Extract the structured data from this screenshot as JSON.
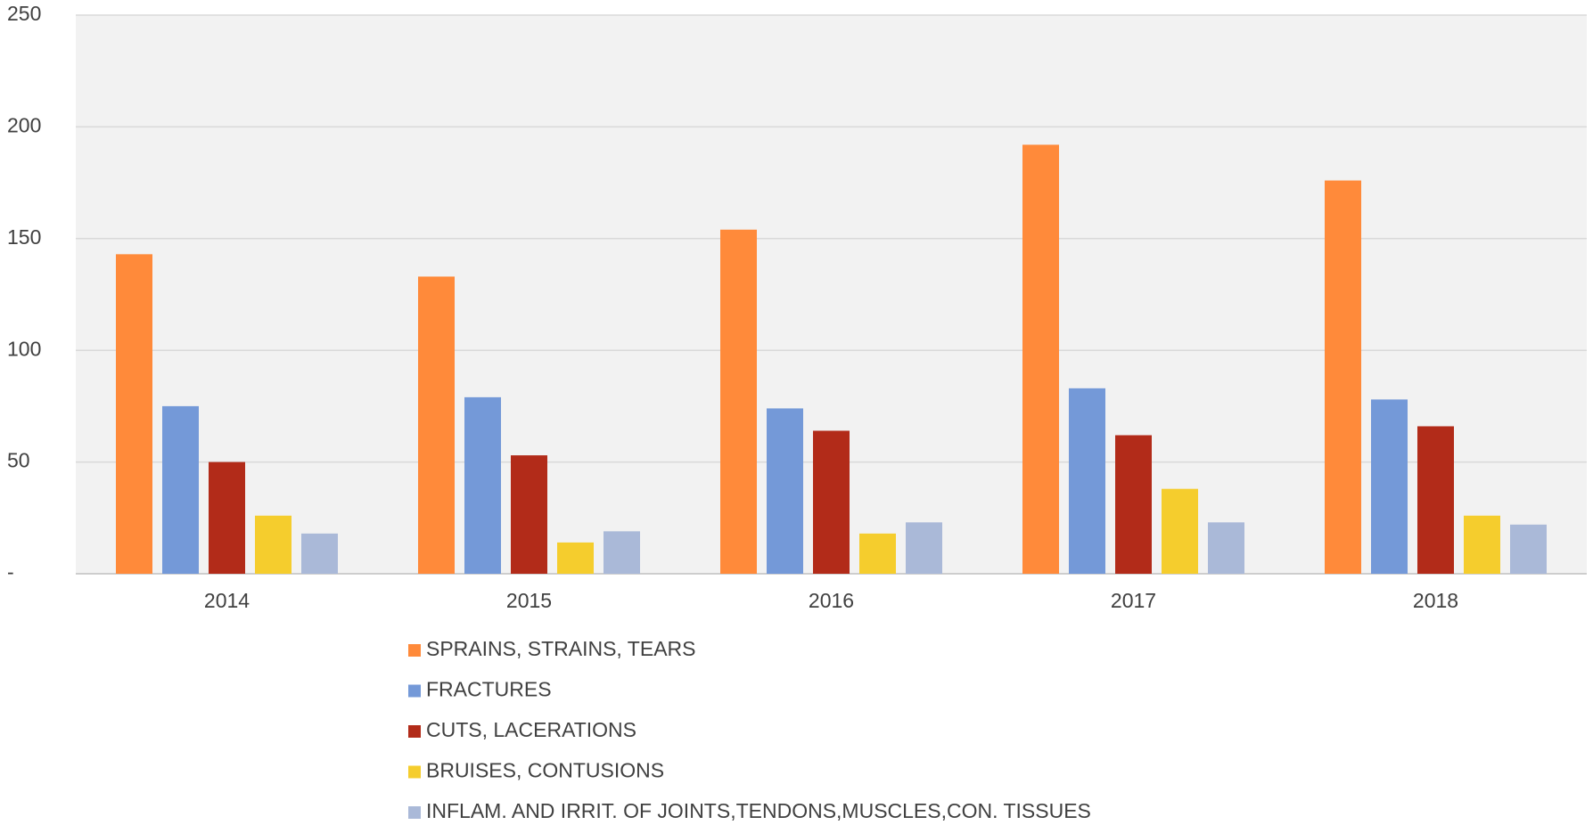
{
  "chart_data": {
    "type": "bar",
    "categories": [
      "2014",
      "2015",
      "2016",
      "2017",
      "2018"
    ],
    "series": [
      {
        "name": "SPRAINS, STRAINS, TEARS",
        "color": "#ff8a3a",
        "values": [
          143,
          133,
          154,
          192,
          176
        ]
      },
      {
        "name": "FRACTURES",
        "color": "#7499d8",
        "values": [
          75,
          79,
          74,
          83,
          78
        ]
      },
      {
        "name": "CUTS, LACERATIONS",
        "color": "#b22b19",
        "values": [
          50,
          53,
          64,
          62,
          66
        ]
      },
      {
        "name": "BRUISES, CONTUSIONS",
        "color": "#f5cd2d",
        "values": [
          26,
          14,
          18,
          38,
          26
        ]
      },
      {
        "name": "INFLAM. AND IRRIT. OF JOINTS,TENDONS,MUSCLES,CON. TISSUES",
        "color": "#aab9d8",
        "values": [
          18,
          19,
          23,
          23,
          22
        ]
      }
    ],
    "ylim": [
      0,
      250
    ],
    "yticks": [
      {
        "value": 0,
        "label": "-"
      },
      50,
      100,
      150,
      200,
      250
    ],
    "grid": true,
    "legend": "bottom"
  }
}
